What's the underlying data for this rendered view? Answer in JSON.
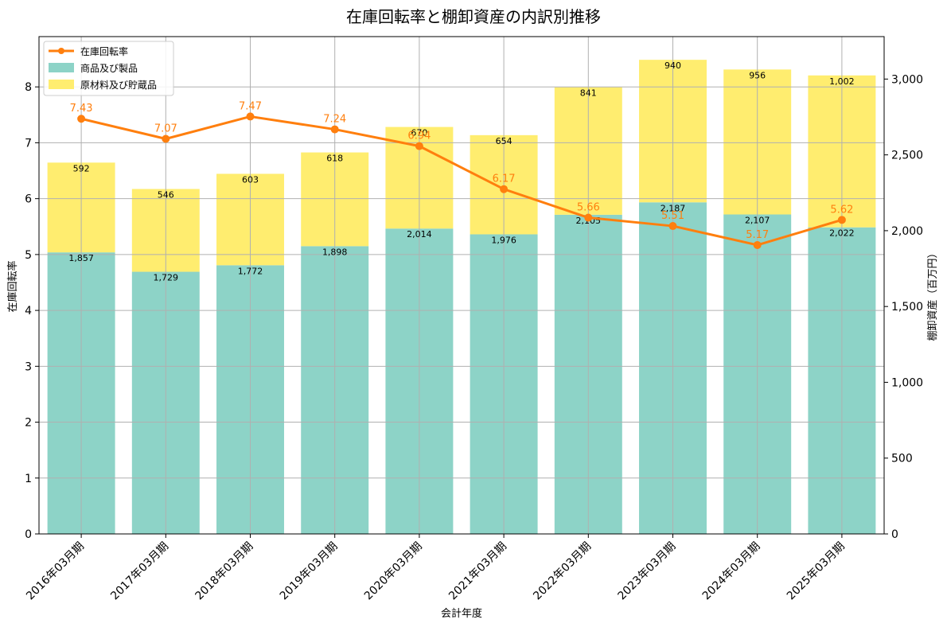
{
  "chart_data": {
    "type": "bar",
    "title": "在庫回転率と棚卸資産の内訳別推移",
    "xlabel": "会計年度",
    "ylabel_left": "在庫回転率",
    "ylabel_right": "棚卸資産（百万円）",
    "categories": [
      "2016年03月期",
      "2017年03月期",
      "2018年03月期",
      "2019年03月期",
      "2020年03月期",
      "2021年03月期",
      "2022年03月期",
      "2023年03月期",
      "2024年03月期",
      "2025年03月期"
    ],
    "series": [
      {
        "name": "商品及び製品",
        "kind": "stacked-bar",
        "axis": "right",
        "color": "#8dd3c7",
        "values": [
          1857,
          1729,
          1772,
          1898,
          2014,
          1976,
          2105,
          2187,
          2107,
          2022
        ],
        "labels": [
          "1,857",
          "1,729",
          "1,772",
          "1,898",
          "2,014",
          "1,976",
          "2,105",
          "2,187",
          "2,107",
          "2,022"
        ]
      },
      {
        "name": "原材料及び貯蔵品",
        "kind": "stacked-bar",
        "axis": "right",
        "color": "#ffed6f",
        "values": [
          592,
          546,
          603,
          618,
          670,
          654,
          841,
          940,
          956,
          1002
        ],
        "labels": [
          "592",
          "546",
          "603",
          "618",
          "670",
          "654",
          "841",
          "940",
          "956",
          "1,002"
        ]
      },
      {
        "name": "在庫回転率",
        "kind": "line",
        "axis": "left",
        "color": "#ff7f0e",
        "values": [
          7.43,
          7.07,
          7.47,
          7.24,
          6.94,
          6.17,
          5.66,
          5.51,
          5.17,
          5.62
        ],
        "labels": [
          "7.43",
          "7.07",
          "7.47",
          "7.24",
          "6.94",
          "6.17",
          "5.66",
          "5.51",
          "5.17",
          "5.62"
        ]
      }
    ],
    "ylim_left": [
      0,
      8.9
    ],
    "yticks_left": [
      0,
      1,
      2,
      3,
      4,
      5,
      6,
      7,
      8
    ],
    "ylim_right": [
      0,
      3280
    ],
    "yticks_right": [
      0,
      500,
      1000,
      1500,
      2000,
      2500,
      3000
    ],
    "yticklabels_right": [
      "0",
      "500",
      "1,000",
      "1,500",
      "2,000",
      "2,500",
      "3,000"
    ],
    "grid": true,
    "legend": "top-left"
  }
}
